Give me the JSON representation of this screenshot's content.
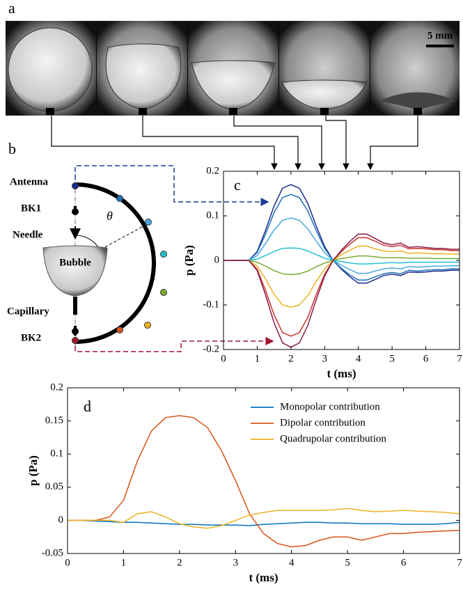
{
  "panel_labels": [
    "a",
    "b",
    "c",
    "d"
  ],
  "scale_bar": "5 mm",
  "diagram": {
    "labels": [
      "Antenna",
      "BK1",
      "Needle",
      "Capillary",
      "BK2"
    ],
    "bubble": "Bubble",
    "angle": "θ"
  },
  "chart_data": [
    {
      "type": "line",
      "xlabel": "t (ms)",
      "ylabel": "p (Pa)",
      "xlim": [
        0,
        7
      ],
      "xticks": [
        0,
        1,
        2,
        3,
        4,
        5,
        6,
        7
      ],
      "ylim": [
        -0.2,
        0.2
      ],
      "yticks": [
        -0.2,
        -0.1,
        0,
        0.1,
        0.2
      ],
      "x": [
        0,
        0.25,
        0.5,
        0.75,
        1,
        1.25,
        1.5,
        1.75,
        2,
        2.25,
        2.5,
        2.75,
        3,
        3.25,
        3.5,
        3.75,
        4,
        4.25,
        4.5,
        4.75,
        5,
        5.25,
        5.5,
        5.75,
        6,
        6.25,
        6.5,
        6.75,
        7
      ],
      "series": [
        {
          "color": "#1a2a8c",
          "values": [
            0,
            0,
            0,
            0,
            0.02,
            0.068,
            0.122,
            0.162,
            0.17,
            0.162,
            0.128,
            0.077,
            0.031,
            0,
            -0.02,
            -0.037,
            -0.051,
            -0.051,
            -0.043,
            -0.034,
            -0.031,
            -0.034,
            -0.026,
            -0.027,
            -0.026,
            -0.024,
            -0.024,
            -0.022,
            -0.022
          ]
        },
        {
          "color": "#1f6fb4",
          "values": [
            0,
            0,
            0,
            0,
            0.018,
            0.059,
            0.107,
            0.141,
            0.148,
            0.141,
            0.111,
            0.067,
            0.027,
            0,
            -0.018,
            -0.033,
            -0.044,
            -0.044,
            -0.037,
            -0.03,
            -0.027,
            -0.03,
            -0.022,
            -0.024,
            -0.022,
            -0.021,
            -0.021,
            -0.019,
            -0.019
          ]
        },
        {
          "color": "#48a8e0",
          "values": [
            0,
            0,
            0,
            0,
            0.011,
            0.038,
            0.068,
            0.09,
            0.095,
            0.09,
            0.071,
            0.043,
            0.017,
            0,
            -0.011,
            -0.021,
            -0.029,
            -0.029,
            -0.024,
            -0.019,
            -0.017,
            -0.019,
            -0.014,
            -0.015,
            -0.014,
            -0.013,
            -0.013,
            -0.012,
            -0.012
          ]
        },
        {
          "color": "#22c0cf",
          "values": [
            0,
            0,
            0,
            0,
            0.003,
            0.011,
            0.02,
            0.027,
            0.028,
            0.027,
            0.021,
            0.013,
            0.005,
            0,
            -0.003,
            -0.006,
            -0.008,
            -0.008,
            -0.007,
            -0.006,
            -0.005,
            -0.006,
            -0.004,
            -0.004,
            -0.004,
            -0.004,
            -0.004,
            -0.004,
            -0.004
          ]
        },
        {
          "color": "#77ac30",
          "values": [
            0,
            0,
            0,
            0,
            -0.004,
            -0.013,
            -0.023,
            -0.03,
            -0.032,
            -0.03,
            -0.024,
            -0.014,
            -0.006,
            0,
            0.004,
            0.007,
            0.01,
            0.01,
            0.008,
            0.006,
            0.006,
            0.006,
            0.005,
            0.005,
            0.005,
            0.004,
            0.004,
            0.004,
            0.004
          ]
        },
        {
          "color": "#edb120",
          "values": [
            0,
            0,
            0,
            0,
            -0.013,
            -0.042,
            -0.076,
            -0.1,
            -0.105,
            -0.1,
            -0.079,
            -0.047,
            -0.019,
            0,
            0.013,
            0.023,
            0.032,
            0.032,
            0.026,
            0.021,
            0.019,
            0.021,
            0.016,
            0.017,
            0.016,
            0.015,
            0.015,
            0.014,
            0.014
          ]
        },
        {
          "color": "#c8322b",
          "values": [
            0,
            0,
            0,
            0,
            -0.02,
            -0.068,
            -0.122,
            -0.162,
            -0.17,
            -0.162,
            -0.128,
            -0.077,
            -0.031,
            0,
            0.02,
            0.037,
            0.051,
            0.051,
            0.043,
            0.034,
            0.031,
            0.034,
            0.026,
            0.027,
            0.026,
            0.024,
            0.024,
            0.022,
            0.022
          ]
        },
        {
          "color": "#8b1a4a",
          "values": [
            0,
            0,
            0,
            0,
            -0.023,
            -0.078,
            -0.14,
            -0.185,
            -0.195,
            -0.185,
            -0.146,
            -0.088,
            -0.035,
            0,
            0.023,
            0.043,
            0.059,
            0.059,
            0.049,
            0.039,
            0.035,
            0.039,
            0.029,
            0.031,
            0.029,
            0.027,
            0.027,
            0.025,
            0.025
          ]
        }
      ]
    },
    {
      "type": "line",
      "xlabel": "t (ms)",
      "ylabel": "p (Pa)",
      "legend": "upper right",
      "xlim": [
        0,
        7
      ],
      "xticks": [
        0,
        1,
        2,
        3,
        4,
        5,
        6,
        7
      ],
      "ylim": [
        -0.05,
        0.2
      ],
      "yticks": [
        -0.05,
        0,
        0.05,
        0.1,
        0.15,
        0.2
      ],
      "x": [
        0,
        0.25,
        0.5,
        0.75,
        1,
        1.25,
        1.5,
        1.75,
        2,
        2.25,
        2.5,
        2.75,
        3,
        3.25,
        3.5,
        3.75,
        4,
        4.25,
        4.5,
        4.75,
        5,
        5.25,
        5.5,
        5.75,
        6,
        6.25,
        6.5,
        6.75,
        7
      ],
      "series": [
        {
          "name": "Monopolar contribution",
          "color": "#0072bd",
          "values": [
            0,
            0,
            -0.001,
            -0.002,
            -0.003,
            -0.003,
            -0.004,
            -0.005,
            -0.006,
            -0.006,
            -0.007,
            -0.007,
            -0.007,
            -0.008,
            -0.006,
            -0.005,
            -0.004,
            -0.003,
            -0.003,
            -0.004,
            -0.004,
            -0.005,
            -0.005,
            -0.005,
            -0.006,
            -0.006,
            -0.006,
            -0.005,
            -0.003
          ]
        },
        {
          "name": "Dipolar contribution",
          "color": "#d95319",
          "values": [
            0,
            0,
            0,
            0.005,
            0.03,
            0.09,
            0.135,
            0.155,
            0.158,
            0.155,
            0.14,
            0.105,
            0.06,
            0.01,
            -0.02,
            -0.035,
            -0.04,
            -0.038,
            -0.03,
            -0.025,
            -0.025,
            -0.03,
            -0.025,
            -0.02,
            -0.02,
            -0.018,
            -0.017,
            -0.016,
            -0.015
          ]
        },
        {
          "name": "Quadrupolar contribution",
          "color": "#edb120",
          "values": [
            0,
            0,
            0,
            0,
            -0.003,
            0.01,
            0.013,
            0.005,
            -0.005,
            -0.01,
            -0.012,
            -0.008,
            0,
            0.008,
            0.012,
            0.015,
            0.015,
            0.015,
            0.015,
            0.016,
            0.018,
            0.015,
            0.013,
            0.014,
            0.015,
            0.014,
            0.013,
            0.012,
            0.01
          ]
        }
      ]
    }
  ]
}
